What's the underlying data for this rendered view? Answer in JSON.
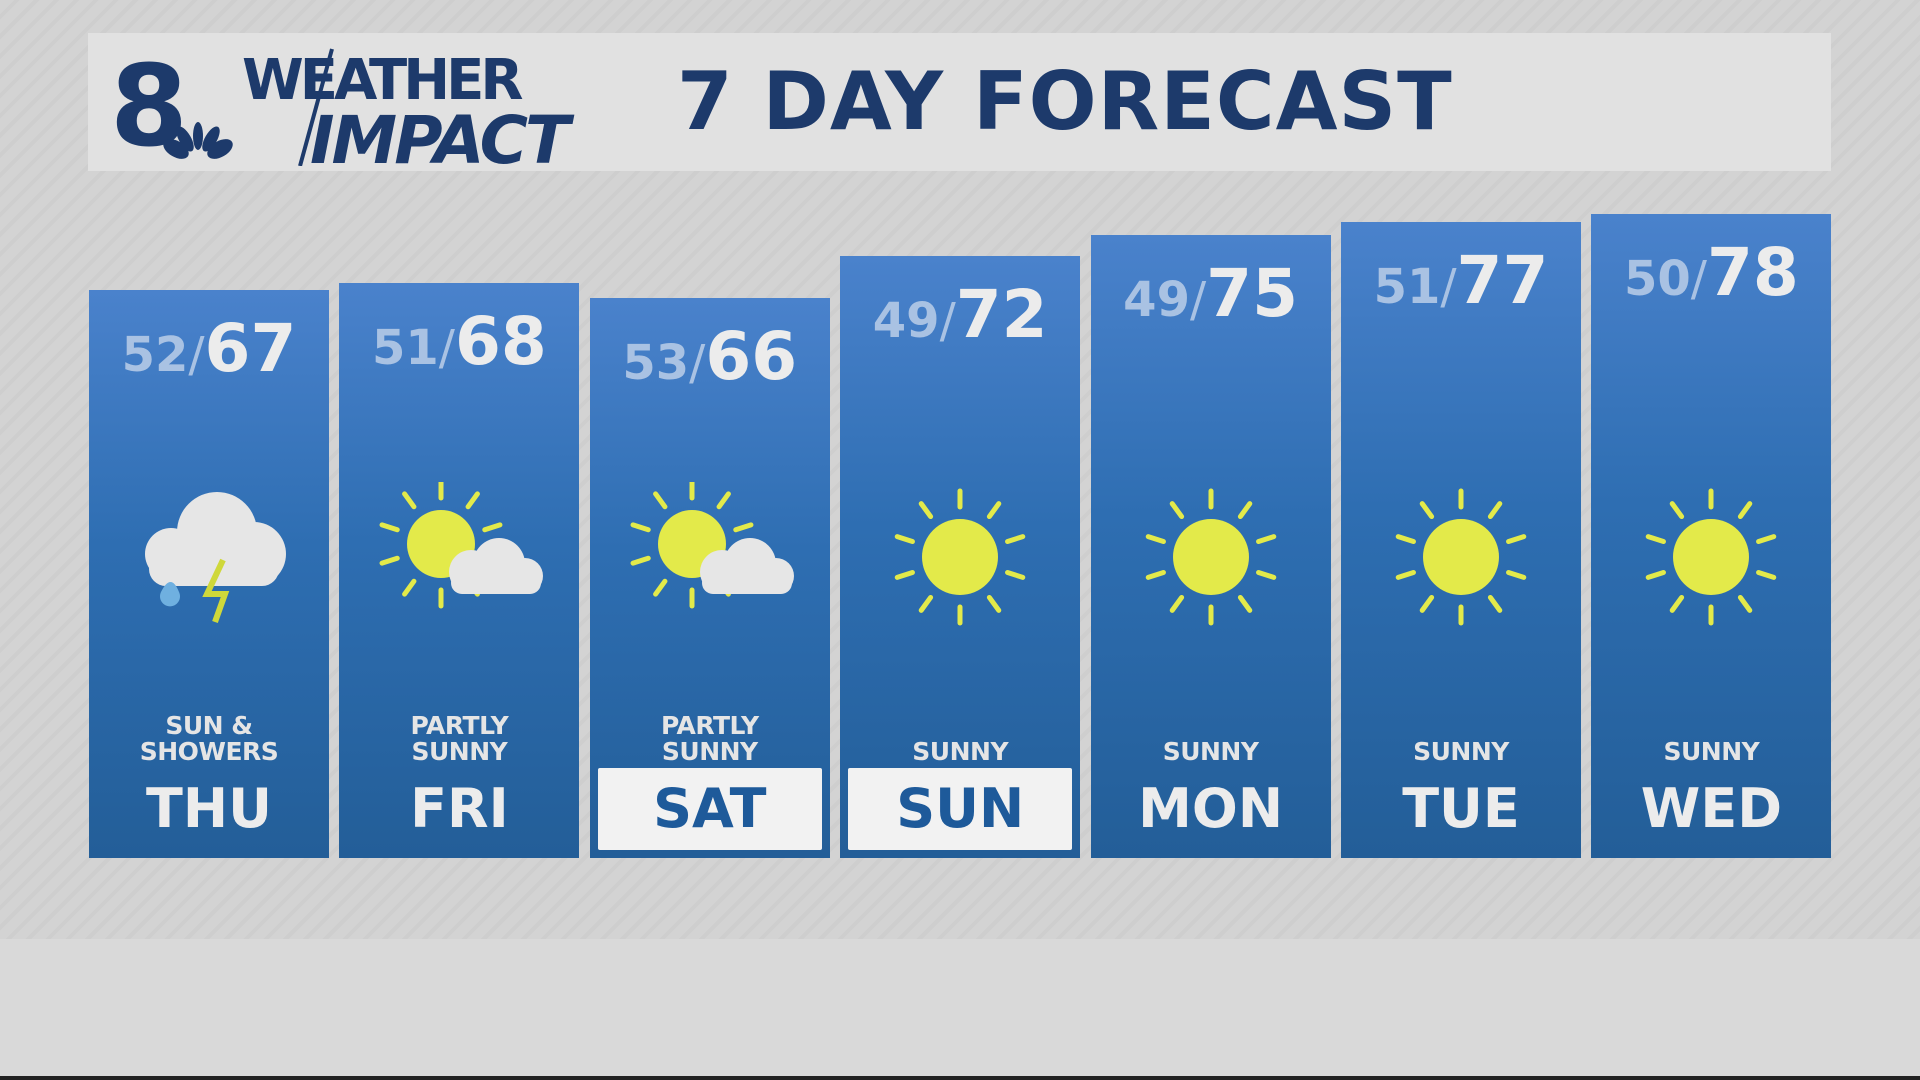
{
  "header": {
    "station": "8",
    "brand_line1": "WEATHER",
    "brand_line2": "IMPACT",
    "title": "7 DAY FORECAST"
  },
  "colors": {
    "brand": "#1d3a6b",
    "column": "#2e6eb2",
    "sun": "#e3ea4a",
    "cloud": "#e6e6e6",
    "rain": "#6fb0e0"
  },
  "days": [
    {
      "day": "THU",
      "low": "52",
      "high": "67",
      "condition_line1": "SUN &",
      "condition_line2": "SHOWERS",
      "icon": "cloud-storm-icon",
      "highlight": false
    },
    {
      "day": "FRI",
      "low": "51",
      "high": "68",
      "condition_line1": "PARTLY",
      "condition_line2": "SUNNY",
      "icon": "partly-sunny-icon",
      "highlight": false
    },
    {
      "day": "SAT",
      "low": "53",
      "high": "66",
      "condition_line1": "PARTLY",
      "condition_line2": "SUNNY",
      "icon": "partly-sunny-icon",
      "highlight": true
    },
    {
      "day": "SUN",
      "low": "49",
      "high": "72",
      "condition_line1": "SUNNY",
      "condition_line2": "",
      "icon": "sun-icon",
      "highlight": true
    },
    {
      "day": "MON",
      "low": "49",
      "high": "75",
      "condition_line1": "SUNNY",
      "condition_line2": "",
      "icon": "sun-icon",
      "highlight": false
    },
    {
      "day": "TUE",
      "low": "51",
      "high": "77",
      "condition_line1": "SUNNY",
      "condition_line2": "",
      "icon": "sun-icon",
      "highlight": false
    },
    {
      "day": "WED",
      "low": "50",
      "high": "78",
      "condition_line1": "SUNNY",
      "condition_line2": "",
      "icon": "sun-icon",
      "highlight": false
    }
  ]
}
